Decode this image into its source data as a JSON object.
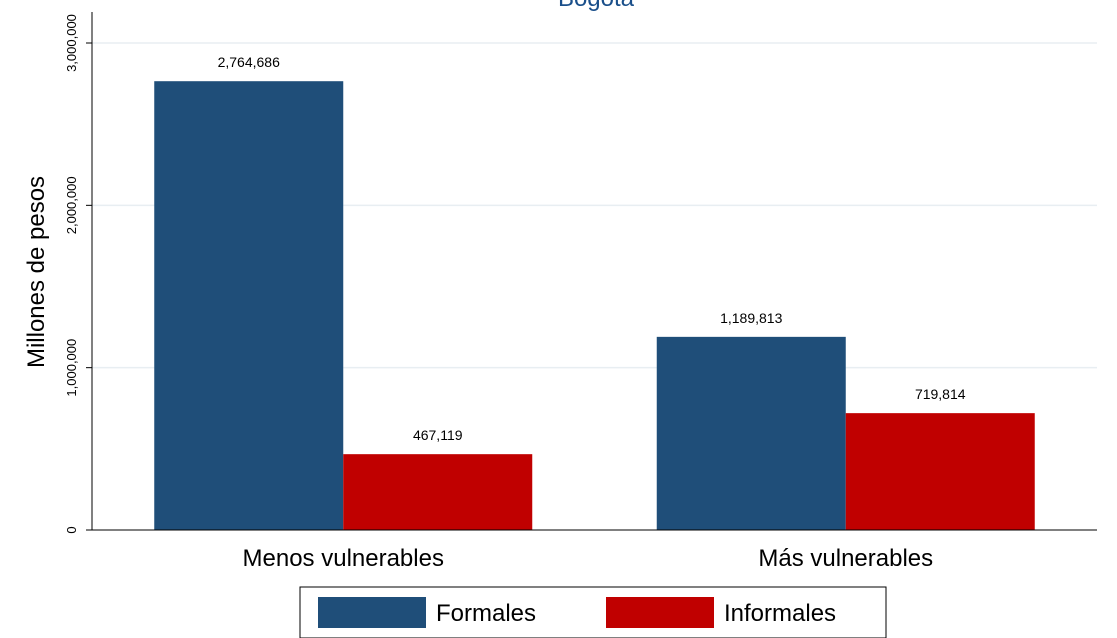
{
  "chart_data": {
    "type": "bar",
    "title": "Bogotá",
    "xlabel": "",
    "ylabel": "Millones de pesos",
    "categories": [
      "Menos vulnerables",
      "Más vulnerables"
    ],
    "series": [
      {
        "name": "Formales",
        "values": [
          2764686,
          1189813
        ],
        "labels": [
          "2,764,686",
          "1,189,813"
        ],
        "color": "#1f4e79"
      },
      {
        "name": "Informales",
        "values": [
          467119,
          719814
        ],
        "labels": [
          "467,119",
          "719,814"
        ],
        "color": "#c00000"
      }
    ],
    "ylim": [
      0,
      3000000
    ],
    "yticks": [
      0,
      1000000,
      2000000,
      3000000
    ],
    "ytick_labels": [
      "0",
      "1,000,000",
      "2,000,000",
      "3,000,000"
    ],
    "grid": true,
    "legend_position": "bottom"
  }
}
